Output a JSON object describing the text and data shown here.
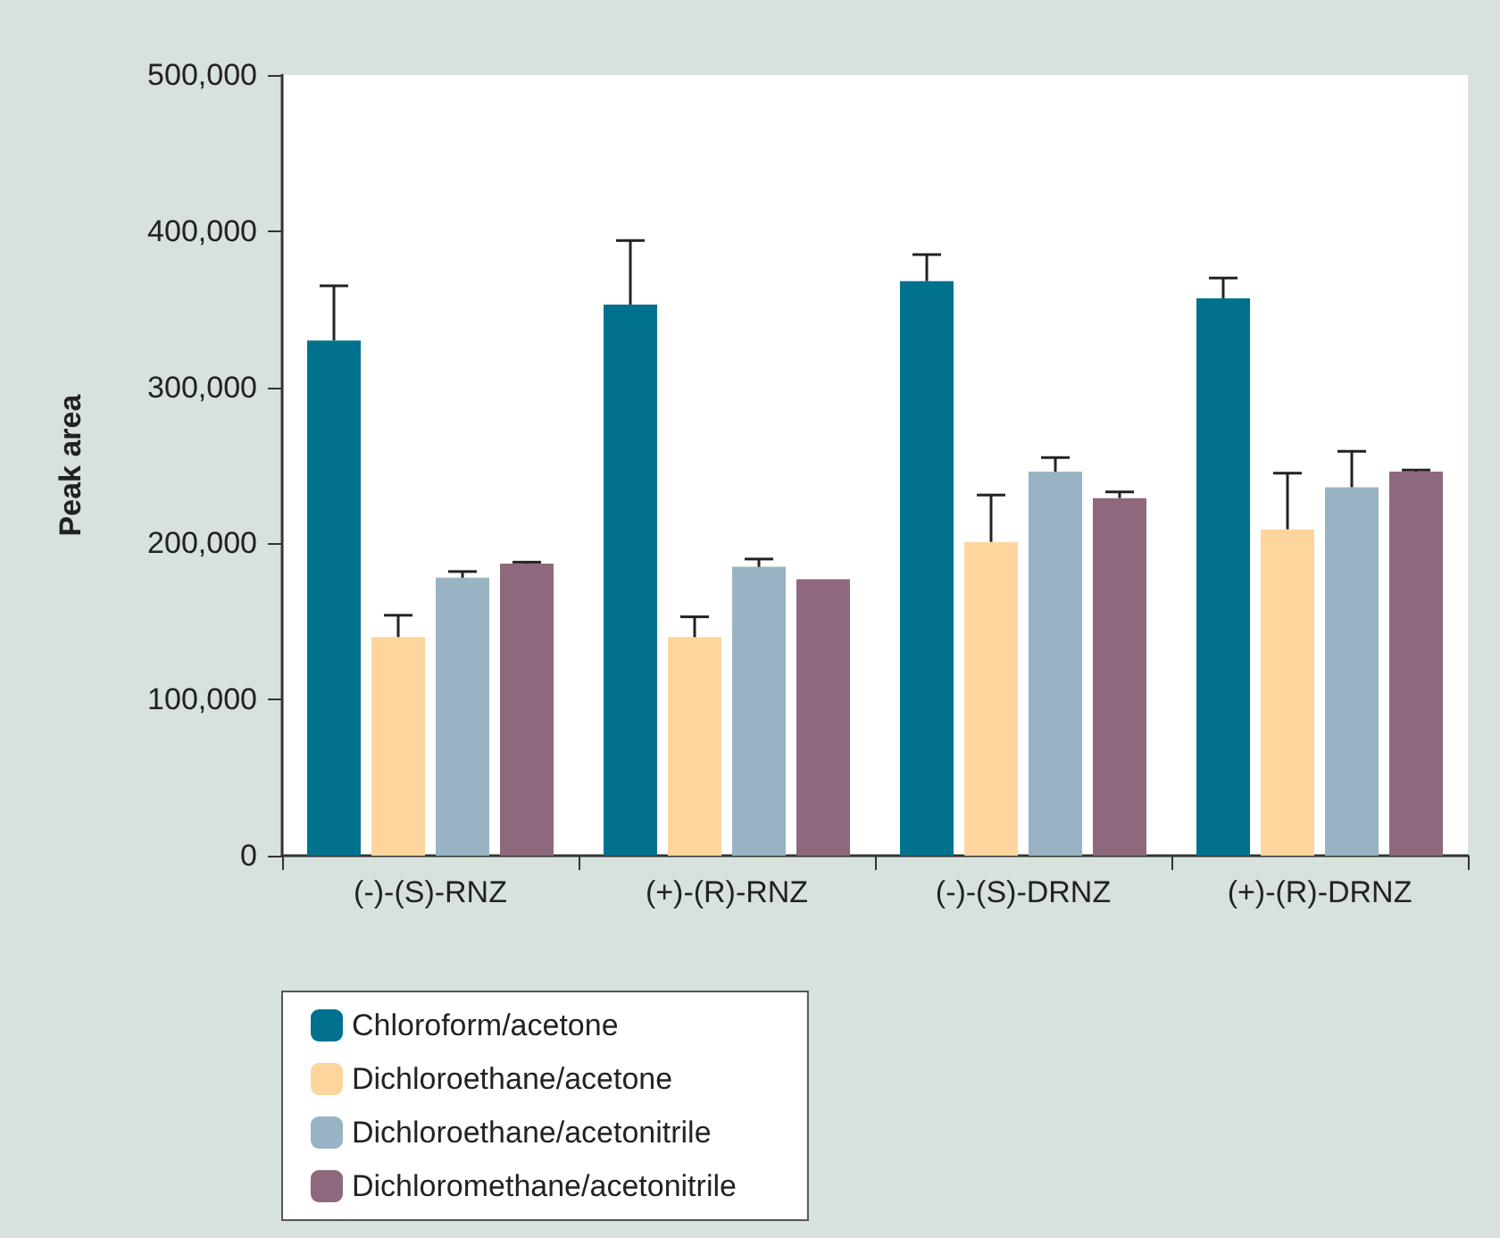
{
  "chart_data": {
    "type": "bar",
    "ylabel": "Peak area",
    "categories": [
      "(-)-(S)-RNZ",
      "(+)-(R)-RNZ",
      "(-)-(S)-DRNZ",
      "(+)-(R)-DRNZ"
    ],
    "series": [
      {
        "name": "Chloroform/acetone",
        "color": "#00728e",
        "values": [
          330000,
          353000,
          368000,
          357000
        ],
        "errors": [
          [
            330000,
            365000
          ],
          [
            353000,
            394000
          ],
          [
            368000,
            385000
          ],
          [
            357000,
            370000
          ]
        ]
      },
      {
        "name": "Dichloroethane/acetone",
        "color": "#fdd59d",
        "values": [
          140000,
          140000,
          201000,
          209000
        ],
        "errors": [
          [
            140000,
            154000
          ],
          [
            140000,
            153000
          ],
          [
            201000,
            231000
          ],
          [
            209000,
            245000
          ]
        ]
      },
      {
        "name": "Dichloroethane/acetonitrile",
        "color": "#97b3c4",
        "values": [
          178000,
          185000,
          246000,
          236000
        ],
        "errors": [
          [
            178000,
            182000
          ],
          [
            185000,
            190000
          ],
          [
            246000,
            255000
          ],
          [
            236000,
            259000
          ]
        ]
      },
      {
        "name": "Dichloromethane/acetonitrile",
        "color": "#8e687d",
        "values": [
          187000,
          177000,
          229000,
          246000
        ],
        "errors": [
          [
            187000,
            188000
          ],
          null,
          [
            229000,
            233000
          ],
          [
            246000,
            247000
          ]
        ]
      }
    ],
    "ylim": [
      0,
      500000
    ],
    "yticks": [
      {
        "value": 0,
        "label": "0"
      },
      {
        "value": 100000,
        "label": "100,000"
      },
      {
        "value": 200000,
        "label": "200,000"
      },
      {
        "value": 300000,
        "label": "300,000"
      },
      {
        "value": 400000,
        "label": "400,000"
      },
      {
        "value": 500000,
        "label": "500,000"
      }
    ],
    "grid": false,
    "legend": "bottom left"
  }
}
